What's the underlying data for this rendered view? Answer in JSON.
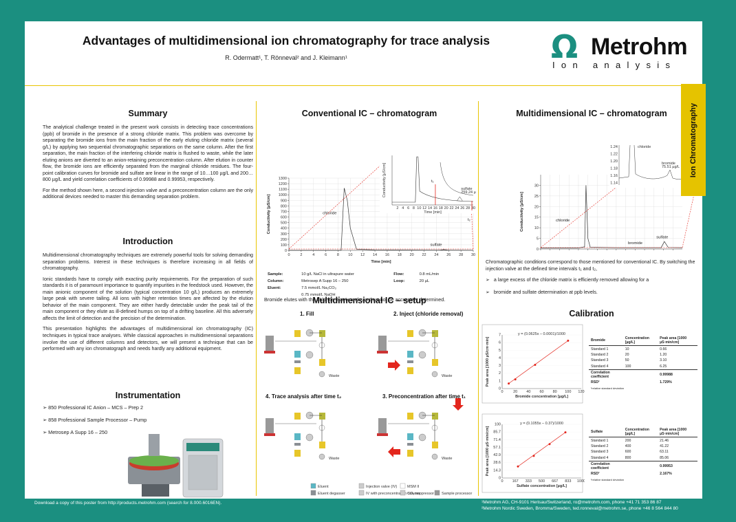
{
  "header": {
    "title": "Advantages of multidimensional ion chromatography for trace analysis",
    "authors": "R. Odermatt¹, T. Rönneval² and J. Kleimann¹"
  },
  "logo": {
    "symbol": "Ω",
    "name": "Metrohm",
    "tagline": "Ion analysis"
  },
  "side_tab": "Ion Chromatography",
  "summary": {
    "heading": "Summary",
    "p1": "The analytical challenge treated in the present work consists in detecting trace concentrations (ppb) of bromide in the presence of a strong chloride matrix. This problem was overcome by separating the bromide ions from the main fraction of the early eluting chloride matrix (several g/L) by applying two sequential chromatographic separations on the same column. After the first separation, the main fraction of the interfering chloride matrix is flushed to waste, while the later eluting anions are diverted to an anion-retaining preconcentration column. After elution in counter flow, the bromide ions are efficiently separated from the marginal chloride residues. The four-point calibration curves for bromide and sulfate are linear in the range of 10…100 µg/L and 200…800 µg/L and yield correlation coefficients of 0.99988 and 0.99953, respectively.",
    "p2": "For the method shown here, a second injection valve and a preconcentration column are the only additional devices needed to master this demanding separation problem."
  },
  "introduction": {
    "heading": "Introduction",
    "p1": "Multidimensional chromatography techniques are extremely powerful tools for solving demanding separation problems. Interest in these techniques is therefore increasing in all fields of chromatography.",
    "p2": "Ionic standards have to comply with exacting purity requirements. For the preparation of such standards it is of paramount importance to quantify impurities in the feedstock used. However, the main anionic component of the solution (typical concentration 10 g/L) produces an extremely large peak with severe tailing. All ions with higher retention times are affected by the elution behavior of the main component. They are either hardly detectable under the peak tail of the main component or they elute as ill-defined humps on top of a drifting baseline. All this adversely affects the limit of detection and the precision of the determination.",
    "p3": "This presentation highlights the advantages of multidimensional ion chromatography (IC) techniques in typical trace analyses. While classical approaches in multidimensional separations involve the use of different columns and detectors, we will present a technique that can be performed with any ion chromatograph and needs hardly any additional equipment."
  },
  "instrumentation": {
    "heading": "Instrumentation",
    "items": [
      "850 Professional IC Anion – MCS – Prep 2",
      "858 Professional Sample Processor – Pump",
      "Metrosep A Supp 16 – 250"
    ]
  },
  "conventional": {
    "heading": "Conventional IC – chromatogram",
    "ylabel": "Conductivity [µS/cm]",
    "xlabel": "Time [min]",
    "inset_ylabel": "Conductivity [µS/cm]",
    "inset_xlabel": "Time [min]",
    "labels": {
      "chloride": "chloride",
      "sulfate": "sulfate",
      "sulfate_inset": "sulfate",
      "sulfate_inset_area": "259.24 µg/L",
      "t1": "t₁",
      "t2": "t₂"
    },
    "conditions": [
      {
        "k1": "Sample:",
        "v1": "10 g/L NaCl in ultrapure water",
        "k2": "Flow:",
        "v2": "0.8 mL/min"
      },
      {
        "k1": "Column:",
        "v1": "Metrosep A Supp 16 – 250",
        "k2": "Loop:",
        "v2": "20 µL"
      },
      {
        "k1": "Eluent:",
        "v1": "7.5 mmol/L Na₂CO₃",
        "k2": "",
        "v2": ""
      },
      {
        "k1": "",
        "v1": "0.75 mmol/L NaOH",
        "k2": "",
        "v2": ""
      }
    ],
    "note": "Bromide elutes with the chloride matrix and can thus not be accurately determined."
  },
  "setup": {
    "heading": "Multidimensional IC – setup",
    "steps": [
      "1. Fill",
      "2. Inject (chloride removal)",
      "3. Preconcentration after time t₁",
      "4. Trace analysis after time t₂"
    ],
    "waste": "Waste",
    "legend": [
      "Eluent",
      "Eluent degasser",
      "Pump",
      "Injection valve (IV)",
      "IV with preconcentration column",
      "Column",
      "MSM II",
      "CO₂ suppressor",
      "Detector",
      "Sample processor"
    ]
  },
  "multidimensional": {
    "heading": "Multidimensional IC – chromatogram",
    "ylabel": "Conductivity [µS/cm]",
    "xlabel": "Time [min]",
    "labels": {
      "chloride": "chloride",
      "bromide": "bromide",
      "sulfate": "sulfate",
      "inset_chloride": "chloride",
      "inset_bromide": "bromide",
      "inset_bromide_area": "75.51 µg/L"
    },
    "note": "Chromatographic conditions correspond to those mentioned for conventional IC. By switching the injection valve at the defined time intervals t₁ and t₂,",
    "bullets": [
      "a large excess of the chloride matrix is efficiently removed allowing for a",
      "bromide and sulfate determination at ppb levels."
    ]
  },
  "calibration": {
    "heading": "Calibration",
    "bromide": {
      "equation": "y = (0.0625x – 0.0001)/1000",
      "xlabel": "Bromide concentration [µg/L]",
      "ylabel": "Peak area [1000 µS/cm·min]",
      "col1": "Bromide",
      "col2": "Concentration [µg/L]",
      "col3": "Peak area [1000 µS·min/cm]",
      "rows": [
        [
          "Standard 1",
          "10",
          "0.66"
        ],
        [
          "Standard 2",
          "20",
          "1.20"
        ],
        [
          "Standard 3",
          "50",
          "3.10"
        ],
        [
          "Standard 4",
          "100",
          "6.25"
        ]
      ],
      "corr_label": "Correlation coefficient",
      "corr": "0.99988",
      "rsd_label": "RSD¹",
      "rsd": "1.729%",
      "foot": "¹relative standard deviation"
    },
    "sulfate": {
      "equation": "y = (0.1055x – 0.37)/1000",
      "xlabel": "Sulfate concentration [µg/L]",
      "ylabel": "Peak area [1000 µS·min/cm]",
      "col1": "Sulfate",
      "col2": "Concentration [µg/L]",
      "col3": "Peak area [1000 µS·min/cm]",
      "rows": [
        [
          "Standard 1",
          "200",
          "21.46"
        ],
        [
          "Standard 2",
          "400",
          "41.22"
        ],
        [
          "Standard 3",
          "600",
          "63.11"
        ],
        [
          "Standard 4",
          "800",
          "85.06"
        ]
      ],
      "corr_label": "Correlation coefficient",
      "corr": "0.99953",
      "rsd_label": "RSD¹",
      "rsd": "2.167%",
      "foot": "¹relative standard deviation"
    }
  },
  "footer": {
    "left": "Download a copy of this poster from http://products.metrohm.com (search for 8.000.6016EN).",
    "right1": "¹Metrohm AG, CH-9101 Herisau/Switzerland, ro@metrohm.com, phone +41 71 353 86 87",
    "right2": "²Metrohm Nordic Sweden, Bromma/Sweden, ted.ronneval@metrohm.se, phone +46 8 564 844 80"
  },
  "colors": {
    "teal": "#1b8f80",
    "yellow": "#e5c300",
    "red": "#e3261d"
  },
  "chart_data": [
    {
      "type": "line",
      "title": "Conventional IC – chromatogram",
      "xlabel": "Time [min]",
      "ylabel": "Conductivity [µS/cm]",
      "xlim": [
        0,
        30
      ],
      "ylim": [
        0,
        1300
      ],
      "x": [
        0,
        7,
        8.5,
        9,
        9.5,
        10,
        11,
        14,
        20,
        26,
        30
      ],
      "series": [
        {
          "name": "",
          "values": [
            0,
            0,
            0,
            1120,
            900,
            400,
            20,
            8,
            5,
            4,
            3
          ]
        }
      ],
      "x_ticks": [
        0,
        2,
        4,
        6,
        8,
        10,
        12,
        14,
        16,
        18,
        20,
        22,
        24,
        26,
        28,
        30
      ],
      "y_ticks": [
        0,
        100,
        200,
        300,
        400,
        500,
        600,
        700,
        800,
        900,
        1000,
        1100,
        1200,
        1300
      ]
    },
    {
      "type": "line",
      "title": "Multidimensional IC – chromatogram",
      "xlabel": "Time [min]",
      "ylabel": "Conductivity [µS/cm]",
      "xlim": [
        0,
        30
      ],
      "ylim": [
        0,
        35
      ],
      "x": [
        0,
        8,
        9.3,
        9.6,
        10,
        10.5,
        16,
        25.5,
        26.2,
        27,
        30
      ],
      "series": [
        {
          "name": "",
          "values": [
            0.5,
            0.5,
            1,
            30,
            5,
            0.8,
            0.6,
            0.6,
            3.5,
            0.7,
            0.6
          ]
        }
      ],
      "x_ticks": [
        0,
        2,
        4,
        6,
        8,
        10,
        12,
        14,
        16,
        18,
        20,
        22,
        24,
        26,
        28
      ],
      "y_ticks": [
        0,
        5,
        10,
        15,
        20,
        25,
        30
      ]
    },
    {
      "type": "scatter",
      "title": "",
      "xlabel": "Bromide concentration [µg/L]",
      "ylabel": "Peak area [1000 µS/cm·min]",
      "xlim": [
        0,
        120
      ],
      "ylim": [
        0,
        7
      ],
      "x": [
        10,
        20,
        50,
        100
      ],
      "series": [
        {
          "name": "",
          "values": [
            0.66,
            1.2,
            3.1,
            6.25
          ]
        }
      ]
    },
    {
      "type": "scatter",
      "title": "",
      "xlabel": "Sulfate concentration [µg/L]",
      "ylabel": "Peak area [1000 µS·min/cm]",
      "xlim": [
        0,
        1000
      ],
      "ylim": [
        0,
        100
      ],
      "x": [
        200,
        400,
        600,
        800
      ],
      "series": [
        {
          "name": "",
          "values": [
            21.46,
            41.22,
            63.11,
            85.06
          ]
        }
      ]
    }
  ]
}
